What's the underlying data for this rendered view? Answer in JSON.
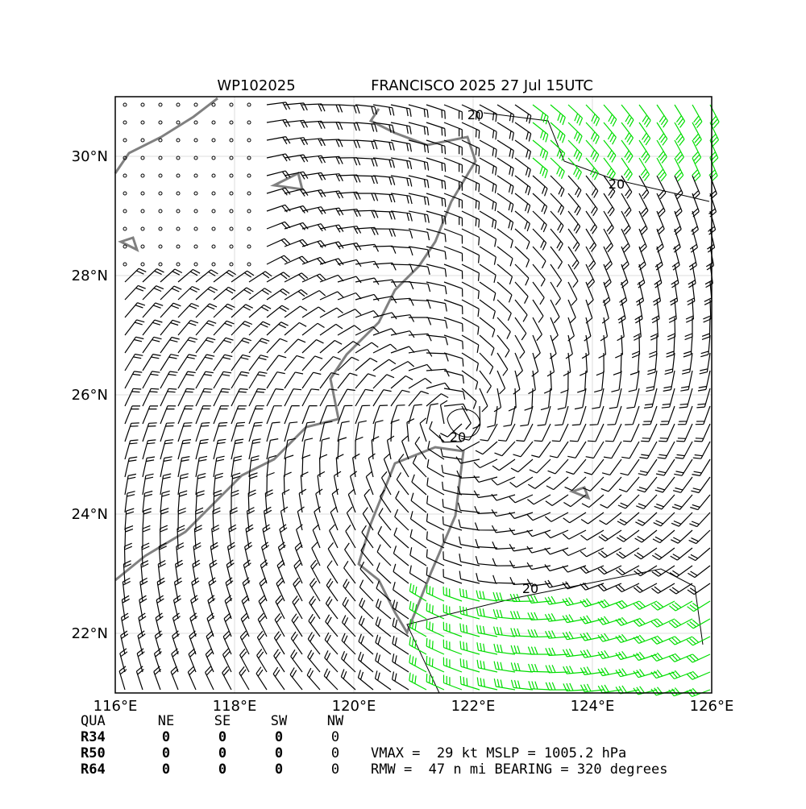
{
  "map": {
    "title_left": "WP102025",
    "title_right": "FRANCISCO 2025 27 Jul 15UTC",
    "xlim": [
      116,
      126
    ],
    "ylim": [
      21,
      31
    ],
    "xticks": [
      {
        "value": 116,
        "label": "116°E"
      },
      {
        "value": 118,
        "label": "118°E"
      },
      {
        "value": 120,
        "label": "120°E"
      },
      {
        "value": 122,
        "label": "122°E"
      },
      {
        "value": 124,
        "label": "124°E"
      },
      {
        "value": 126,
        "label": "126°E"
      }
    ],
    "yticks": [
      {
        "value": 22,
        "label": "22°N"
      },
      {
        "value": 24,
        "label": "24°N"
      },
      {
        "value": 26,
        "label": "26°N"
      },
      {
        "value": 28,
        "label": "28°N"
      },
      {
        "value": 30,
        "label": "30°N"
      }
    ],
    "contour_labels": [
      "20",
      "20",
      "20",
      "20"
    ],
    "table": {
      "header": [
        "QUA",
        "NE",
        "SE",
        "SW",
        "NW"
      ],
      "rows": [
        [
          "R34",
          "0",
          "0",
          "0",
          "0"
        ],
        [
          "R50",
          "0",
          "0",
          "0",
          "0"
        ],
        [
          "R64",
          "0",
          "0",
          "0",
          "0"
        ]
      ]
    },
    "summary": [
      "VMAX =  29 kt MSLP = 1005.2 hPa",
      "RMW =  47 n mi BEARING = 320 degrees"
    ]
  }
}
